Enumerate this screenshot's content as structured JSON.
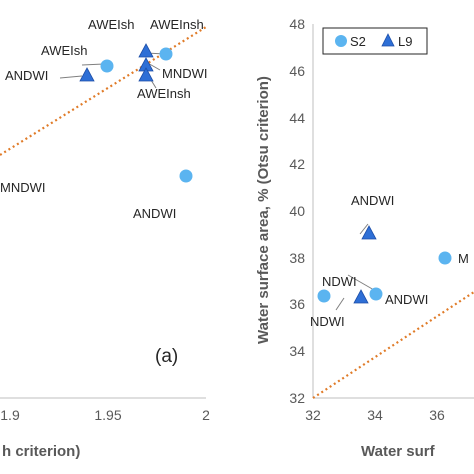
{
  "chart_data": [
    {
      "type": "scatter",
      "panel_label": "(a)",
      "xlim": [
        1.85,
        2.0
      ],
      "ylim": [
        null,
        null
      ],
      "x_ticks": [
        "1.9",
        "1.95",
        "2"
      ],
      "xlabel": "h criterion)",
      "grid": false,
      "reference_line": "1:1 dotted",
      "series": [
        {
          "name": "S2",
          "marker": "circle",
          "color": "#5BB4F0",
          "points": [
            {
              "x": 1.95,
              "y": 46.2,
              "label": "AWEIsh"
            },
            {
              "x": 1.98,
              "y": 46.7,
              "label": "AWEInsh"
            },
            {
              "x": 1.99,
              "y": 41.5,
              "label": "ANDWI"
            }
          ]
        },
        {
          "name": "L9",
          "marker": "triangle",
          "color": "#2E6FD6",
          "points": [
            {
              "x": 1.94,
              "y": 45.9,
              "label": "ANDWI"
            },
            {
              "x": 1.97,
              "y": 46.8,
              "label": "AWEIsh"
            },
            {
              "x": 1.97,
              "y": 46.2,
              "label": "MNDWI"
            },
            {
              "x": 1.97,
              "y": 45.7,
              "label": "AWEInsh"
            }
          ]
        }
      ],
      "extra_labels": [
        "MNDWI"
      ]
    },
    {
      "type": "scatter",
      "xlim": [
        32,
        37.2
      ],
      "ylim": [
        32,
        48
      ],
      "x_ticks": [
        "32",
        "34",
        "36"
      ],
      "y_ticks": [
        "32",
        "34",
        "36",
        "38",
        "40",
        "42",
        "44",
        "46",
        "48"
      ],
      "xlabel": "Water surf",
      "ylabel": "Water surface area, % (Otsu criterion)",
      "grid": false,
      "legend": {
        "position": "top-left",
        "entries": [
          "S2",
          "L9"
        ]
      },
      "reference_line": "1:1 dotted",
      "series": [
        {
          "name": "S2",
          "marker": "circle",
          "color": "#5BB4F0",
          "points": [
            {
              "x": 32.4,
              "y": 36.4,
              "label": "NDWI"
            },
            {
              "x": 33.8,
              "y": 36.5,
              "label": "ANDWI"
            },
            {
              "x": 35.6,
              "y": 38.0,
              "label": "M"
            }
          ]
        },
        {
          "name": "L9",
          "marker": "triangle",
          "color": "#2E6FD6",
          "points": [
            {
              "x": 33.6,
              "y": 39.1,
              "label": "ANDWI"
            },
            {
              "x": 33.4,
              "y": 36.3,
              "label": "NDWI"
            }
          ]
        }
      ]
    }
  ]
}
